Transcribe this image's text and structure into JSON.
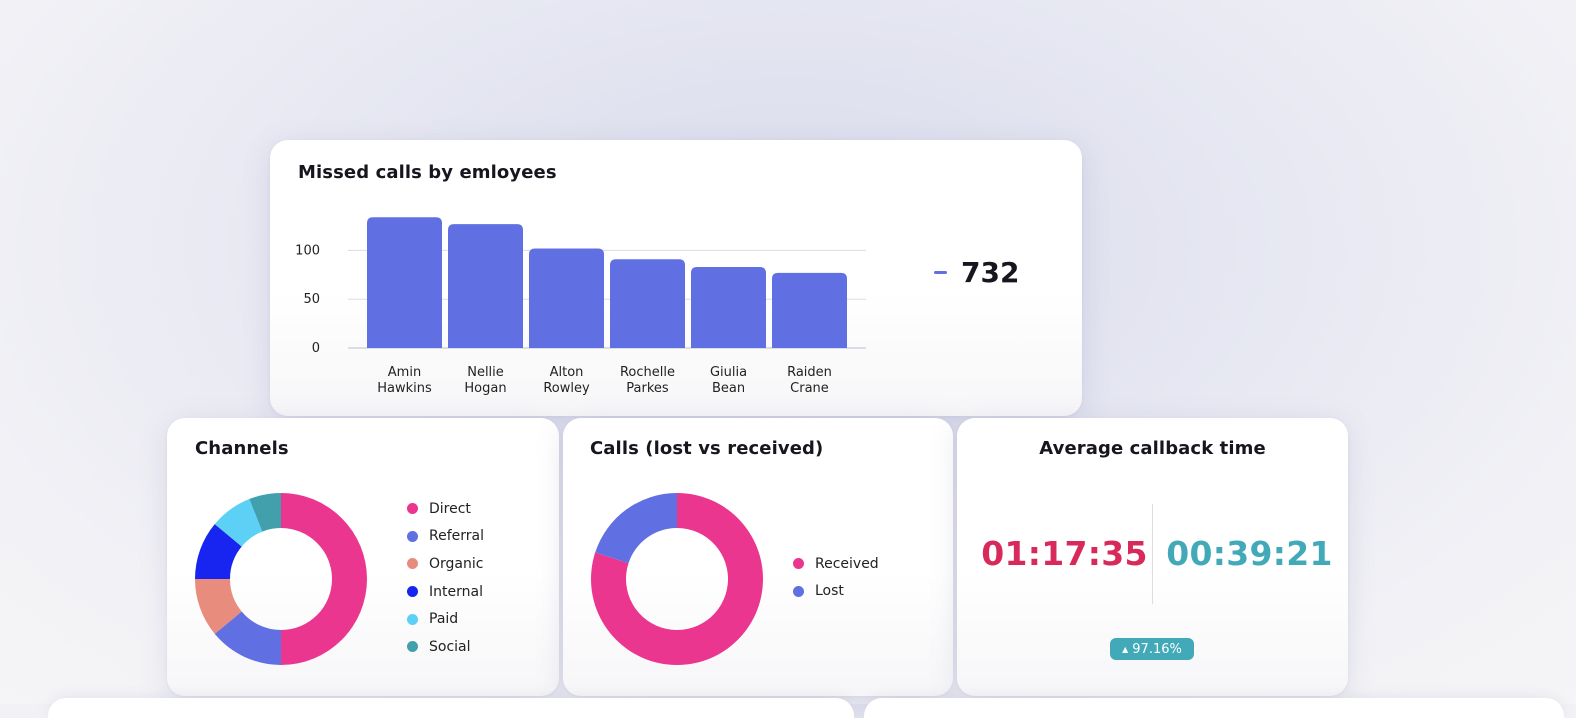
{
  "missed_calls_card": {
    "title": "Missed calls by emloyees",
    "total_label": "732"
  },
  "channels_card": {
    "title": "Channels"
  },
  "calls_card": {
    "title": "Calls (lost vs received)"
  },
  "callback_card": {
    "title": "Average callback time",
    "time_current": "01:17:35",
    "time_previous": "00:39:21",
    "change_icon": "triangle-up-icon",
    "change_percent": "97.16%",
    "colors": {
      "current": "#d72a5b",
      "previous": "#42a9b8",
      "badge": "#42a9b8"
    }
  },
  "chart_data": [
    {
      "id": "missed",
      "type": "bar",
      "title": "Missed calls by emloyees",
      "categories": [
        [
          "Amin",
          "Hawkins"
        ],
        [
          "Nellie",
          "Hogan"
        ],
        [
          "Alton",
          "Rowley"
        ],
        [
          "Rochelle",
          "Parkes"
        ],
        [
          "Giulia",
          "Bean"
        ],
        [
          "Raiden",
          "Crane"
        ]
      ],
      "values": [
        134,
        127,
        102,
        91,
        83,
        77
      ],
      "yticks": [
        0,
        50,
        100
      ],
      "ylim": [
        0,
        140
      ],
      "grid": true,
      "color": "#6070e2",
      "total": 732,
      "xlabel": "",
      "ylabel": ""
    },
    {
      "id": "channels",
      "type": "pie",
      "title": "Channels",
      "labels": [
        "Direct",
        "Referral",
        "Organic",
        "Internal",
        "Paid",
        "Social"
      ],
      "values": [
        50,
        14,
        11,
        11,
        8,
        6
      ],
      "colors": [
        "#eb368f",
        "#6070e2",
        "#e88c7d",
        "#1824f0",
        "#5dd0f5",
        "#42a0ad"
      ],
      "legend": "right"
    },
    {
      "id": "calls",
      "type": "pie",
      "title": "Calls (lost vs received)",
      "labels": [
        "Received",
        "Lost"
      ],
      "values": [
        80,
        20
      ],
      "colors": [
        "#eb368f",
        "#6070e2"
      ],
      "legend": "right"
    }
  ]
}
